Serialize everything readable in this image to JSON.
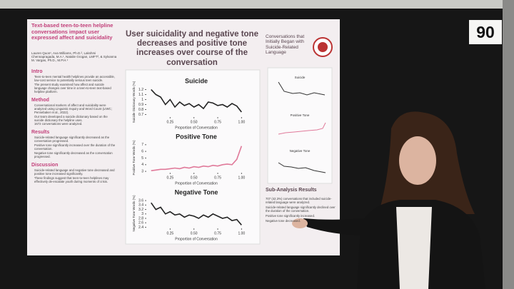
{
  "sign": "90",
  "poster": {
    "left": {
      "title": "Text-based teen-to-teen helpline conversations impact user expressed affect and suicidality",
      "authors": "Lauren Quon¹, Ava Williams, Ph.D.², Lakshmi Chennapragada, M.A.¹, Natalie Grogan, LMFT², & Sylvanna M. Vargas, Ph.D., M.P.H.¹",
      "sections": [
        {
          "heading": "Intro",
          "items": [
            "Teen-to-teen mental health helplines provide an accessible, low-cost service to potentially serious teen suicide.",
            "The present study examined how affect and suicide language changes over time in a teen-to-teen text-based helpline platform."
          ]
        },
        {
          "heading": "Method",
          "items": [
            "Conversational markers of affect and suicidality were analyzed using Linguistic Inquiry and Word Count (LIWC; Pennebaker et al., 2022).",
            "Our team developed a suicide dictionary based on the suicide dictionary the helpline uses.",
            "1672 conversations were analyzed."
          ]
        },
        {
          "heading": "Results",
          "items": [
            "Suicide-related language significantly decreased as the conversation progressed.",
            "Positive tone significantly increased over the duration of the conversation.",
            "Negative tone significantly decreased as the conversation progressed."
          ]
        },
        {
          "heading": "Discussion",
          "items": [
            "Suicide-related language and negative tone decreased and positive tone increased significantly.",
            "These findings suggest that teen-to-teen helplines may effectively de-escalate youth during moments of crisis."
          ]
        }
      ]
    },
    "center": {
      "title": "User suicidality and negative tone decreases and positive tone increases over course of the conversation",
      "charts": [
        {
          "type": "line",
          "title": "Suicide",
          "ylabel": "Suicide Dictionary Words (%)",
          "xlabel": "Proportion of Conversation",
          "color": "#222222",
          "x": [
            0.05,
            0.1,
            0.15,
            0.2,
            0.25,
            0.3,
            0.35,
            0.4,
            0.45,
            0.5,
            0.55,
            0.6,
            0.65,
            0.7,
            0.75,
            0.8,
            0.85,
            0.9,
            0.95,
            1.0
          ],
          "values": [
            1.2,
            1.1,
            1.05,
            0.9,
            1.0,
            0.85,
            0.95,
            0.88,
            0.92,
            0.85,
            0.9,
            0.82,
            0.95,
            0.93,
            0.88,
            0.9,
            0.85,
            0.92,
            0.87,
            0.75
          ],
          "xlim": [
            0,
            1.05
          ],
          "ylim": [
            0.65,
            1.25
          ],
          "xticks": [
            0.25,
            {
              "value": 0.5,
              "label": "0.50"
            },
            0.75,
            {
              "value": 1,
              "label": "1.00"
            }
          ],
          "yticks": [
            0.7,
            0.8,
            0.9,
            1,
            1.1,
            1.2
          ]
        },
        {
          "type": "line",
          "title": "Positive Tone",
          "ylabel": "Positive Tone Words (%)",
          "xlabel": "Proportion of Conversation",
          "color": "#e07a9a",
          "x": [
            0.05,
            0.1,
            0.15,
            0.2,
            0.25,
            0.3,
            0.35,
            0.4,
            0.45,
            0.5,
            0.55,
            0.6,
            0.65,
            0.7,
            0.75,
            0.8,
            0.85,
            0.9,
            0.95,
            1.0
          ],
          "values": [
            3.1,
            3.2,
            3.3,
            3.3,
            3.4,
            3.5,
            3.4,
            3.6,
            3.5,
            3.7,
            3.6,
            3.8,
            3.7,
            3.9,
            3.8,
            4.0,
            4.1,
            4.0,
            4.8,
            6.8
          ],
          "xlim": [
            0,
            1.05
          ],
          "ylim": [
            2.8,
            7.3
          ],
          "xticks": [
            0.25,
            {
              "value": 0.5,
              "label": "0.50"
            },
            0.75,
            {
              "value": 1,
              "label": "1.00"
            }
          ],
          "yticks": [
            3,
            4,
            5,
            6,
            7
          ]
        },
        {
          "type": "line",
          "title": "Negative Tone",
          "ylabel": "Negative Tone Words (%)",
          "xlabel": "Proportion of Conversation",
          "color": "#222222",
          "x": [
            0.05,
            0.1,
            0.15,
            0.2,
            0.25,
            0.3,
            0.35,
            0.4,
            0.45,
            0.5,
            0.55,
            0.6,
            0.65,
            0.7,
            0.75,
            0.8,
            0.85,
            0.9,
            0.95,
            1.0
          ],
          "values": [
            3.5,
            3.2,
            3.3,
            3.0,
            3.1,
            2.95,
            3.0,
            2.85,
            2.95,
            2.9,
            2.8,
            2.95,
            2.85,
            3.0,
            2.9,
            2.8,
            2.85,
            2.7,
            2.75,
            2.5
          ],
          "xlim": [
            0,
            1.05
          ],
          "ylim": [
            2.35,
            3.7
          ],
          "xticks": [
            0.25,
            {
              "value": 0.5,
              "label": "0.50"
            },
            0.75,
            {
              "value": 1,
              "label": "1.00"
            }
          ],
          "yticks": [
            2.4,
            2.6,
            2.8,
            3,
            3.2,
            3.4,
            3.6
          ]
        }
      ]
    },
    "right": {
      "title": "Conversations that Initially Began with Suicide-Related Language",
      "mini_titles": [
        "Suicide",
        "Positive Tone",
        "Negative Tone"
      ],
      "heading": "Sub-Analysis Results",
      "items": [
        "707 (42.3%) conversations that included suicide-related language were analyzed.",
        "Suicide-related language significantly declined over the duration of the conversation.",
        "Positive tone significantly increased.",
        "Negative tone decreased."
      ]
    }
  }
}
